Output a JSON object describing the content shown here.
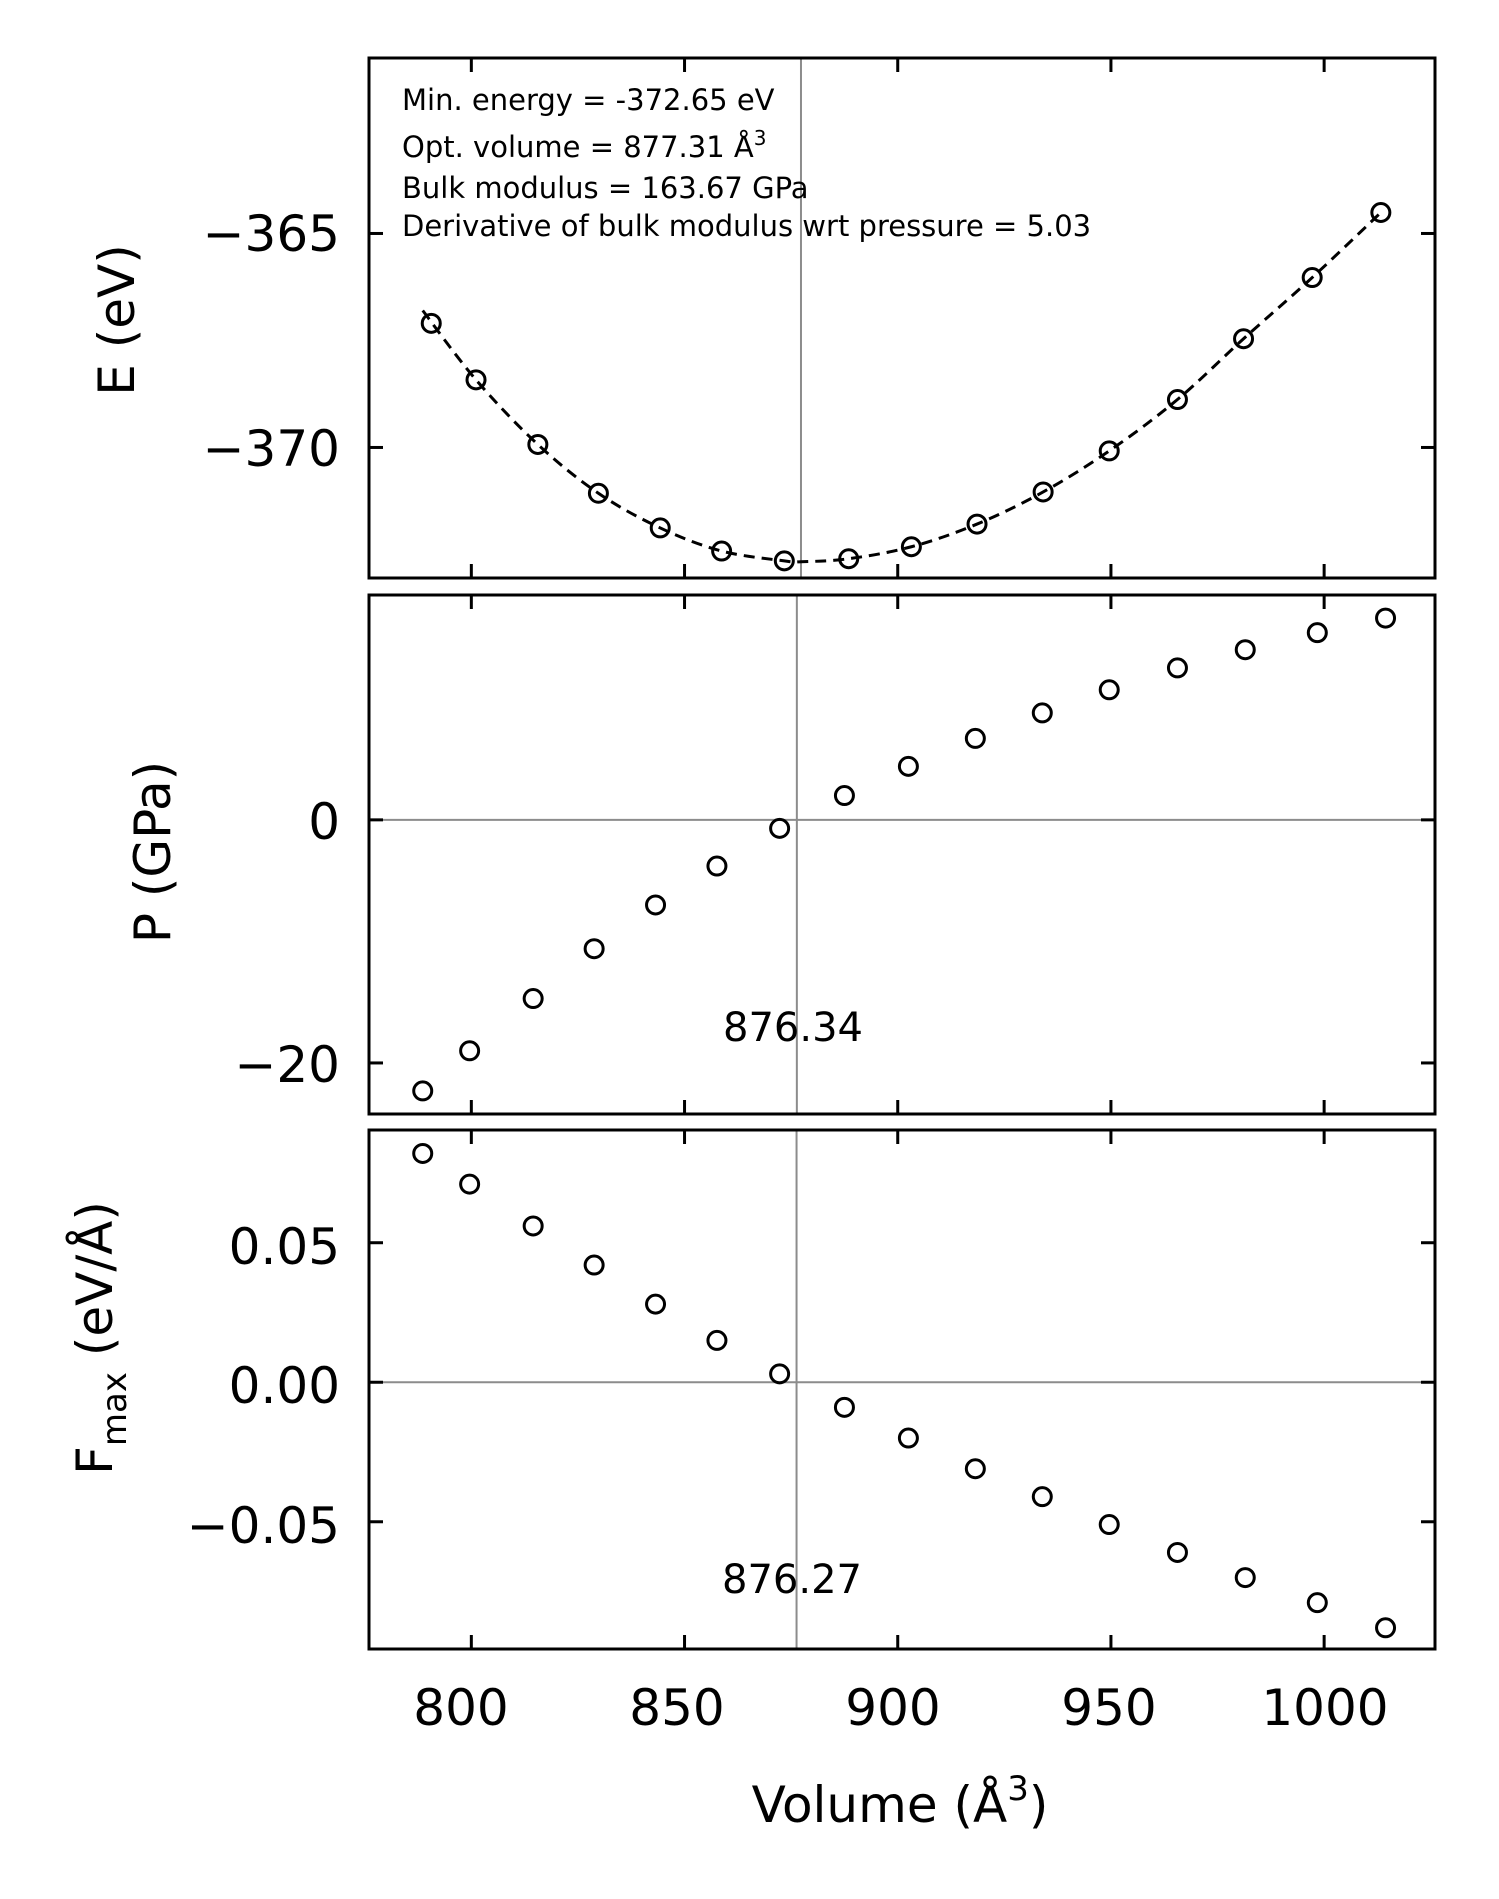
{
  "chart_data": [
    {
      "type": "scatter",
      "panel": "energy",
      "ylabel": "E (eV)",
      "xlim": [
        776,
        1026
      ],
      "ylim": [
        -373.05,
        -360.9
      ],
      "yticks": [
        -370,
        -365
      ],
      "ytick_labels": [
        "−370",
        "−365"
      ],
      "xticks": [
        800,
        850,
        900,
        950,
        1000
      ],
      "x": [
        790.6,
        801.1,
        815.6,
        829.8,
        844.3,
        858.7,
        873.4,
        888.5,
        903.2,
        918.6,
        934.1,
        949.6,
        965.6,
        981.1,
        997.2,
        1013.3
      ],
      "y": [
        -367.1,
        -368.42,
        -369.93,
        -371.07,
        -371.88,
        -372.42,
        -372.65,
        -372.6,
        -372.32,
        -371.79,
        -371.04,
        -370.08,
        -368.88,
        -367.46,
        -366.03,
        -364.51
      ],
      "fit": {
        "style": "dashed",
        "x": [
          788.6,
          801.1,
          815.6,
          829.8,
          844.3,
          858.7,
          873.4,
          877.3,
          888.5,
          903.2,
          918.6,
          934.1,
          949.6,
          965.6,
          981.1,
          997.2,
          1013.3
        ],
        "y": [
          -366.8,
          -368.42,
          -369.93,
          -371.07,
          -371.88,
          -372.42,
          -372.65,
          -372.67,
          -372.6,
          -372.32,
          -371.79,
          -371.04,
          -370.08,
          -368.88,
          -367.46,
          -366.03,
          -364.51
        ]
      },
      "vline": 877.31,
      "annotations": [
        {
          "text": "Min. energy = -372.65 eV"
        },
        {
          "text": "Opt. volume = 877.31 Å",
          "sup": "3"
        },
        {
          "text": "Bulk modulus = 163.67 GPa"
        },
        {
          "text": "Derivative of bulk modulus wrt pressure = 5.03"
        }
      ]
    },
    {
      "type": "scatter",
      "panel": "pressure",
      "ylabel": "P (GPa)",
      "xlim": [
        776,
        1026
      ],
      "ylim": [
        -24.2,
        18.5
      ],
      "yticks": [
        -20,
        0
      ],
      "ytick_labels": [
        "−20",
        "0"
      ],
      "xticks": [
        800,
        850,
        900,
        950,
        1000
      ],
      "x": [
        788.6,
        799.6,
        814.5,
        828.8,
        843.2,
        857.6,
        872.3,
        887.5,
        902.5,
        918.2,
        933.9,
        949.6,
        965.6,
        981.5,
        998.4,
        1014.4
      ],
      "y": [
        -22.3,
        -19.0,
        -14.7,
        -10.6,
        -7.0,
        -3.8,
        -0.7,
        2.0,
        4.4,
        6.7,
        8.8,
        10.7,
        12.5,
        14.0,
        15.4,
        16.6
      ],
      "hline": 0,
      "vline": 876.34,
      "vline_label": "876.34"
    },
    {
      "type": "scatter",
      "panel": "force",
      "ylabel_main": "F",
      "ylabel_sub": "max",
      "ylabel_rest": " (eV/Å)",
      "xlabel_main": "Volume (Å",
      "xlabel_sup": "3",
      "xlabel_end": ")",
      "xlim": [
        776,
        1026
      ],
      "ylim": [
        -0.0956,
        0.0904
      ],
      "yticks": [
        -0.05,
        0.0,
        0.05
      ],
      "ytick_labels": [
        "−0.05",
        "0.00",
        "0.05"
      ],
      "xticks": [
        800,
        850,
        900,
        950,
        1000
      ],
      "xtick_labels": [
        "800",
        "850",
        "900",
        "950",
        "1000"
      ],
      "x": [
        788.6,
        799.6,
        814.5,
        828.8,
        843.2,
        857.6,
        872.3,
        887.5,
        902.5,
        918.2,
        933.9,
        949.6,
        965.6,
        981.5,
        998.4,
        1014.4
      ],
      "y": [
        0.082,
        0.071,
        0.056,
        0.042,
        0.028,
        0.015,
        0.003,
        -0.009,
        -0.02,
        -0.031,
        -0.041,
        -0.051,
        -0.061,
        -0.07,
        -0.079,
        -0.088
      ],
      "hline": 0,
      "vline": 876.27,
      "vline_label": "876.27"
    }
  ]
}
